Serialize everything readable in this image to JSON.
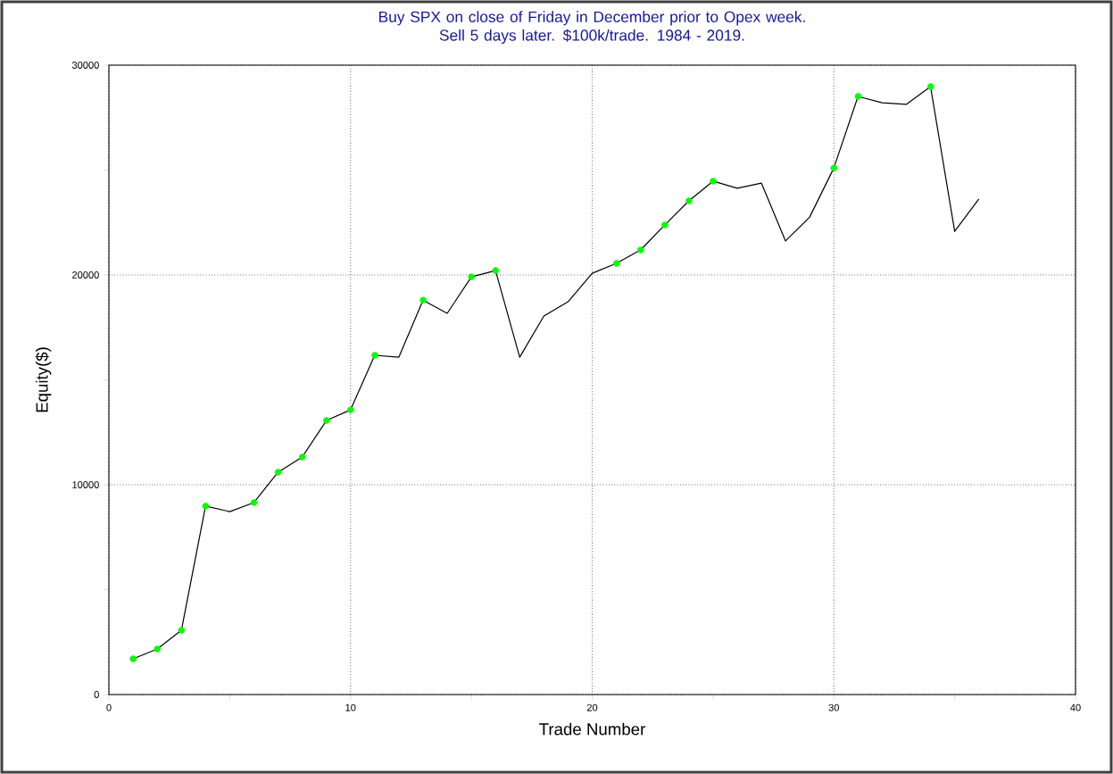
{
  "chart_data": {
    "type": "line",
    "title": "Buy SPX on close of Friday in December prior to Opex week.\nSell 5 days later. $100k/trade. 1984 - 2019.",
    "xlabel": "Trade Number",
    "ylabel": "Equity($)",
    "x": [
      1,
      2,
      3,
      4,
      5,
      6,
      7,
      8,
      9,
      10,
      11,
      12,
      13,
      14,
      15,
      16,
      17,
      18,
      19,
      20,
      21,
      22,
      23,
      24,
      25,
      26,
      27,
      28,
      29,
      30,
      31,
      32,
      33,
      34,
      35,
      36
    ],
    "series": [
      {
        "color": "#000000",
        "marker": "none",
        "values": [
          1700,
          2170,
          3060,
          8980,
          8720,
          9150,
          10600,
          11320,
          13060,
          13570,
          16170,
          16080,
          18800,
          18170,
          19910,
          20210,
          16080,
          18040,
          18720,
          20080,
          20550,
          21190,
          22380,
          23530,
          24470,
          24130,
          24380,
          21620,
          22760,
          25100,
          28510,
          28210,
          28130,
          28980,
          22080,
          23620
        ]
      },
      {
        "type": "scatter",
        "color": "#00ff00",
        "marker": "circle",
        "x": [
          1,
          2,
          3,
          4,
          6,
          7,
          8,
          9,
          10,
          11,
          13,
          15,
          16,
          21,
          22,
          23,
          24,
          25,
          30,
          31,
          34
        ],
        "values": [
          1700,
          2170,
          3060,
          8980,
          9150,
          10600,
          11320,
          13060,
          13570,
          16170,
          18800,
          19910,
          20210,
          20550,
          21190,
          22380,
          23530,
          24470,
          25100,
          28510,
          28980
        ]
      }
    ],
    "xlim": [
      0,
      40
    ],
    "xticks": [
      0,
      {
        "value": 5,
        "label": null
      },
      10,
      {
        "value": 15,
        "label": null
      },
      20,
      {
        "value": 25,
        "label": null
      },
      30,
      {
        "value": 35,
        "label": null
      },
      40
    ],
    "ylim": [
      0,
      30000
    ],
    "yticks": [
      0,
      {
        "value": 5000,
        "label": null
      },
      10000,
      {
        "value": 15000,
        "label": null
      },
      20000,
      {
        "value": 25000,
        "label": null
      },
      30000
    ],
    "grid": true,
    "line_style": "solid"
  }
}
